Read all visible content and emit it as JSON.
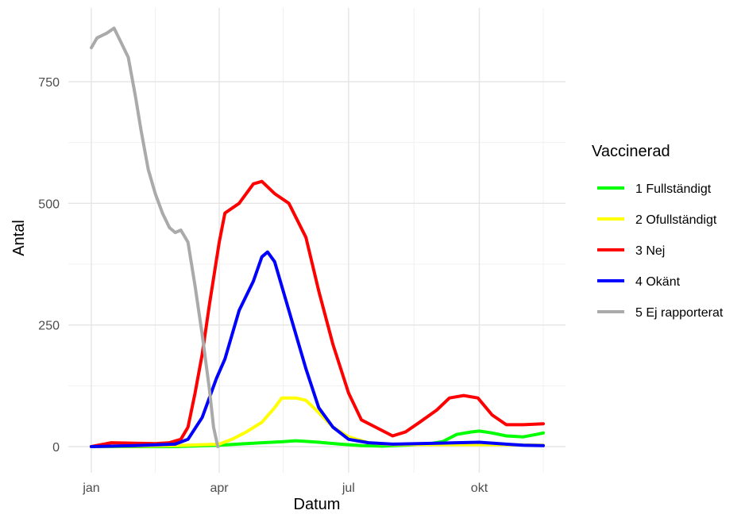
{
  "chart_data": {
    "type": "line",
    "title": "",
    "xlabel": "Datum",
    "ylabel": "Antal",
    "xlim": [
      "2021-01-01",
      "2021-11-15"
    ],
    "ylim": [
      -45,
      880
    ],
    "x_ticks": [
      {
        "date": "2021-01-01",
        "label": "jan"
      },
      {
        "date": "2021-04-01",
        "label": "apr"
      },
      {
        "date": "2021-07-01",
        "label": "jul"
      },
      {
        "date": "2021-10-01",
        "label": "okt"
      }
    ],
    "x_minor_ticks": [
      "2021-02-15",
      "2021-05-16",
      "2021-08-16",
      "2021-11-15"
    ],
    "y_ticks": [
      0,
      250,
      500,
      750
    ],
    "y_minor_ticks": [
      125,
      375,
      625
    ],
    "grid": true,
    "legend": {
      "title": "Vaccinerad",
      "position": "right"
    },
    "series": [
      {
        "name": "1 Fullständigt",
        "color": "#00ff00",
        "points": [
          [
            "2021-01-01",
            0
          ],
          [
            "2021-03-01",
            0
          ],
          [
            "2021-04-01",
            3
          ],
          [
            "2021-04-20",
            6
          ],
          [
            "2021-05-01",
            8
          ],
          [
            "2021-05-15",
            10
          ],
          [
            "2021-05-25",
            12
          ],
          [
            "2021-06-10",
            9
          ],
          [
            "2021-06-25",
            5
          ],
          [
            "2021-07-10",
            2
          ],
          [
            "2021-07-25",
            1
          ],
          [
            "2021-08-10",
            3
          ],
          [
            "2021-08-25",
            5
          ],
          [
            "2021-09-05",
            10
          ],
          [
            "2021-09-15",
            25
          ],
          [
            "2021-09-25",
            30
          ],
          [
            "2021-10-01",
            32
          ],
          [
            "2021-10-10",
            28
          ],
          [
            "2021-10-20",
            22
          ],
          [
            "2021-11-01",
            20
          ],
          [
            "2021-11-10",
            25
          ],
          [
            "2021-11-15",
            28
          ]
        ]
      },
      {
        "name": "2 Ofullständigt",
        "color": "#ffff00",
        "points": [
          [
            "2021-01-01",
            0
          ],
          [
            "2021-03-01",
            2
          ],
          [
            "2021-04-01",
            5
          ],
          [
            "2021-04-10",
            15
          ],
          [
            "2021-04-20",
            30
          ],
          [
            "2021-05-01",
            50
          ],
          [
            "2021-05-10",
            80
          ],
          [
            "2021-05-15",
            100
          ],
          [
            "2021-05-25",
            100
          ],
          [
            "2021-06-01",
            95
          ],
          [
            "2021-06-10",
            70
          ],
          [
            "2021-06-20",
            40
          ],
          [
            "2021-07-01",
            20
          ],
          [
            "2021-07-15",
            8
          ],
          [
            "2021-08-01",
            4
          ],
          [
            "2021-09-01",
            4
          ],
          [
            "2021-10-01",
            4
          ],
          [
            "2021-11-15",
            3
          ]
        ]
      },
      {
        "name": "3 Nej",
        "color": "#ff0000",
        "points": [
          [
            "2021-01-01",
            0
          ],
          [
            "2021-01-15",
            8
          ],
          [
            "2021-02-01",
            7
          ],
          [
            "2021-02-15",
            6
          ],
          [
            "2021-02-25",
            8
          ],
          [
            "2021-03-05",
            15
          ],
          [
            "2021-03-10",
            40
          ],
          [
            "2021-03-15",
            110
          ],
          [
            "2021-03-20",
            190
          ],
          [
            "2021-03-25",
            290
          ],
          [
            "2021-04-01",
            420
          ],
          [
            "2021-04-05",
            480
          ],
          [
            "2021-04-15",
            500
          ],
          [
            "2021-04-25",
            540
          ],
          [
            "2021-05-01",
            545
          ],
          [
            "2021-05-10",
            520
          ],
          [
            "2021-05-20",
            500
          ],
          [
            "2021-06-01",
            430
          ],
          [
            "2021-06-10",
            320
          ],
          [
            "2021-06-20",
            210
          ],
          [
            "2021-07-01",
            110
          ],
          [
            "2021-07-10",
            55
          ],
          [
            "2021-07-20",
            40
          ],
          [
            "2021-08-01",
            22
          ],
          [
            "2021-08-10",
            30
          ],
          [
            "2021-08-20",
            50
          ],
          [
            "2021-09-01",
            75
          ],
          [
            "2021-09-10",
            100
          ],
          [
            "2021-09-20",
            105
          ],
          [
            "2021-09-30",
            100
          ],
          [
            "2021-10-10",
            65
          ],
          [
            "2021-10-20",
            45
          ],
          [
            "2021-11-01",
            45
          ],
          [
            "2021-11-15",
            47
          ]
        ]
      },
      {
        "name": "4 Okänt",
        "color": "#0000ff",
        "points": [
          [
            "2021-01-01",
            0
          ],
          [
            "2021-02-01",
            2
          ],
          [
            "2021-03-01",
            5
          ],
          [
            "2021-03-10",
            15
          ],
          [
            "2021-03-20",
            60
          ],
          [
            "2021-03-30",
            140
          ],
          [
            "2021-04-05",
            180
          ],
          [
            "2021-04-15",
            280
          ],
          [
            "2021-04-25",
            340
          ],
          [
            "2021-05-01",
            390
          ],
          [
            "2021-05-05",
            400
          ],
          [
            "2021-05-10",
            380
          ],
          [
            "2021-05-20",
            280
          ],
          [
            "2021-06-01",
            160
          ],
          [
            "2021-06-10",
            80
          ],
          [
            "2021-06-20",
            40
          ],
          [
            "2021-07-01",
            15
          ],
          [
            "2021-07-15",
            8
          ],
          [
            "2021-08-01",
            5
          ],
          [
            "2021-09-01",
            7
          ],
          [
            "2021-09-15",
            8
          ],
          [
            "2021-10-01",
            9
          ],
          [
            "2021-10-15",
            6
          ],
          [
            "2021-11-01",
            3
          ],
          [
            "2021-11-15",
            2
          ]
        ]
      },
      {
        "name": "5 Ej rapporterat",
        "color": "#aaaaaa",
        "points": [
          [
            "2021-01-01",
            820
          ],
          [
            "2021-01-05",
            840
          ],
          [
            "2021-01-12",
            850
          ],
          [
            "2021-01-17",
            860
          ],
          [
            "2021-01-22",
            830
          ],
          [
            "2021-01-27",
            800
          ],
          [
            "2021-02-01",
            720
          ],
          [
            "2021-02-05",
            650
          ],
          [
            "2021-02-10",
            570
          ],
          [
            "2021-02-15",
            520
          ],
          [
            "2021-02-20",
            480
          ],
          [
            "2021-02-25",
            450
          ],
          [
            "2021-03-01",
            440
          ],
          [
            "2021-03-05",
            445
          ],
          [
            "2021-03-10",
            420
          ],
          [
            "2021-03-15",
            330
          ],
          [
            "2021-03-20",
            230
          ],
          [
            "2021-03-25",
            120
          ],
          [
            "2021-03-28",
            40
          ],
          [
            "2021-03-31",
            0
          ]
        ]
      }
    ]
  }
}
